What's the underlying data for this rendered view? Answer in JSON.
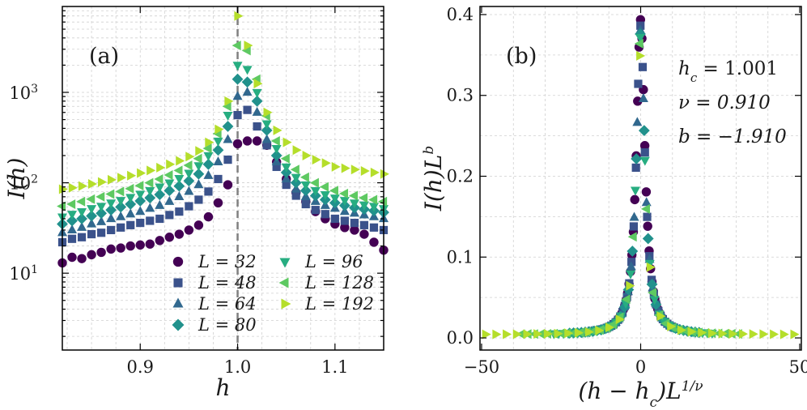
{
  "chart_data": [
    {
      "type": "scatter",
      "panel_label": "(a)",
      "xlabel": "h",
      "ylabel": "I(h)",
      "xlim": [
        0.82,
        1.15
      ],
      "ylim_log10": [
        0.15,
        3.95
      ],
      "yscale": "log",
      "xticks": [
        {
          "value": 0.9,
          "label": "0.9"
        },
        {
          "value": 1.0,
          "label": "1.0"
        },
        {
          "value": 1.1,
          "label": "1.1"
        }
      ],
      "yticks": [
        {
          "exp": 1,
          "label": "10",
          "sup": "1"
        },
        {
          "exp": 2,
          "label": "10",
          "sup": "2"
        },
        {
          "exp": 3,
          "label": "10",
          "sup": "3"
        }
      ],
      "critical_line": 1.0,
      "legend_location": "lower-center",
      "series": [
        {
          "name": "L = 32",
          "L": "32",
          "marker": "circle",
          "color": "#440154",
          "x": [
            0.82,
            0.83,
            0.84,
            0.85,
            0.86,
            0.87,
            0.88,
            0.89,
            0.9,
            0.91,
            0.92,
            0.93,
            0.94,
            0.95,
            0.96,
            0.97,
            0.98,
            0.99,
            1.0,
            1.01,
            1.02,
            1.03,
            1.04,
            1.05,
            1.06,
            1.07,
            1.08,
            1.09,
            1.1,
            1.11,
            1.12,
            1.13,
            1.14,
            1.15
          ],
          "y": [
            13,
            15,
            14.5,
            16,
            17,
            18.5,
            19,
            20,
            20.5,
            21,
            23,
            25,
            27,
            30,
            34,
            42,
            60,
            95,
            270,
            290,
            290,
            260,
            170,
            110,
            78,
            62,
            48,
            40,
            35,
            32,
            30,
            27,
            22,
            18
          ]
        },
        {
          "name": "L = 48",
          "L": "48",
          "marker": "square",
          "color": "#3b528b",
          "x": [
            0.82,
            0.83,
            0.84,
            0.85,
            0.86,
            0.87,
            0.88,
            0.89,
            0.9,
            0.91,
            0.92,
            0.93,
            0.94,
            0.95,
            0.96,
            0.97,
            0.98,
            0.99,
            1.0,
            1.01,
            1.02,
            1.03,
            1.04,
            1.05,
            1.06,
            1.07,
            1.08,
            1.09,
            1.1,
            1.11,
            1.12,
            1.13,
            1.14,
            1.15
          ],
          "y": [
            22,
            24,
            25,
            27,
            28,
            30,
            32,
            34,
            36,
            38,
            40,
            44,
            48,
            55,
            65,
            80,
            110,
            180,
            560,
            640,
            420,
            260,
            150,
            95,
            72,
            58,
            50,
            45,
            40,
            38,
            36,
            34,
            32,
            30
          ]
        },
        {
          "name": "L = 64",
          "L": "64",
          "marker": "triangle-up",
          "color": "#31688e",
          "x": [
            0.82,
            0.83,
            0.84,
            0.85,
            0.86,
            0.87,
            0.88,
            0.89,
            0.9,
            0.91,
            0.92,
            0.93,
            0.94,
            0.95,
            0.96,
            0.97,
            0.98,
            0.99,
            1.0,
            1.01,
            1.02,
            1.03,
            1.04,
            1.05,
            1.06,
            1.07,
            1.08,
            1.09,
            1.1,
            1.11,
            1.12,
            1.13,
            1.14,
            1.15
          ],
          "y": [
            28,
            30,
            32,
            35,
            37,
            40,
            42,
            45,
            48,
            52,
            56,
            62,
            70,
            80,
            95,
            120,
            170,
            300,
            900,
            1000,
            600,
            300,
            170,
            110,
            85,
            70,
            62,
            56,
            52,
            48,
            46,
            44,
            42,
            40
          ]
        },
        {
          "name": "L = 80",
          "L": "80",
          "marker": "diamond",
          "color": "#21918c",
          "x": [
            0.82,
            0.83,
            0.84,
            0.85,
            0.86,
            0.87,
            0.88,
            0.89,
            0.9,
            0.91,
            0.92,
            0.93,
            0.94,
            0.95,
            0.96,
            0.97,
            0.98,
            0.99,
            1.0,
            1.01,
            1.02,
            1.03,
            1.04,
            1.05,
            1.06,
            1.07,
            1.08,
            1.09,
            1.1,
            1.11,
            1.12,
            1.13,
            1.14,
            1.15
          ],
          "y": [
            35,
            38,
            40,
            43,
            46,
            50,
            54,
            58,
            63,
            68,
            74,
            82,
            92,
            105,
            125,
            160,
            230,
            420,
            1400,
            1300,
            800,
            380,
            200,
            130,
            100,
            82,
            72,
            65,
            60,
            56,
            53,
            51,
            49,
            47
          ]
        },
        {
          "name": "L = 96",
          "L": "96",
          "marker": "triangle-down",
          "color": "#27ad81",
          "x": [
            0.82,
            0.83,
            0.84,
            0.85,
            0.86,
            0.87,
            0.88,
            0.89,
            0.9,
            0.91,
            0.92,
            0.93,
            0.94,
            0.95,
            0.96,
            0.97,
            0.98,
            0.99,
            1.0,
            1.01,
            1.02,
            1.03,
            1.04,
            1.05,
            1.06,
            1.07,
            1.08,
            1.09,
            1.1,
            1.11,
            1.12,
            1.13,
            1.14,
            1.15
          ],
          "y": [
            42,
            45,
            48,
            52,
            55,
            60,
            64,
            69,
            75,
            82,
            90,
            100,
            112,
            128,
            155,
            200,
            290,
            560,
            2000,
            1800,
            1000,
            450,
            240,
            150,
            115,
            95,
            82,
            74,
            68,
            64,
            60,
            57,
            55,
            52
          ]
        },
        {
          "name": "L = 128",
          "L": "128",
          "marker": "triangle-left",
          "color": "#5ec962",
          "x": [
            0.82,
            0.83,
            0.84,
            0.85,
            0.86,
            0.87,
            0.88,
            0.89,
            0.9,
            0.91,
            0.92,
            0.93,
            0.94,
            0.95,
            0.96,
            0.97,
            0.98,
            0.99,
            1.0,
            1.01,
            1.02,
            1.03,
            1.04,
            1.05,
            1.06,
            1.07,
            1.08,
            1.09,
            1.1,
            1.11,
            1.12,
            1.13,
            1.14,
            1.15
          ],
          "y": [
            55,
            58,
            62,
            66,
            70,
            75,
            80,
            86,
            93,
            100,
            110,
            122,
            137,
            156,
            185,
            240,
            350,
            700,
            3300,
            2900,
            1400,
            550,
            290,
            185,
            140,
            115,
            100,
            90,
            82,
            76,
            72,
            68,
            65,
            62
          ]
        },
        {
          "name": "L = 192",
          "L": "192",
          "marker": "triangle-right",
          "color": "#b5de2b",
          "x": [
            0.82,
            0.83,
            0.84,
            0.85,
            0.86,
            0.87,
            0.88,
            0.89,
            0.9,
            0.91,
            0.92,
            0.93,
            0.94,
            0.95,
            0.96,
            0.97,
            0.98,
            0.99,
            1.0,
            1.01,
            1.02,
            1.03,
            1.04,
            1.05,
            1.06,
            1.07,
            1.08,
            1.09,
            1.1,
            1.11,
            1.12,
            1.13,
            1.14,
            1.15
          ],
          "y": [
            85,
            88,
            92,
            97,
            102,
            108,
            114,
            120,
            128,
            137,
            147,
            160,
            175,
            195,
            225,
            280,
            390,
            800,
            7000,
            3300,
            1250,
            600,
            380,
            280,
            230,
            200,
            180,
            165,
            150,
            145,
            140,
            135,
            130,
            125
          ]
        }
      ]
    },
    {
      "type": "scatter",
      "panel_label": "(b)",
      "xlabel": "(h − h_c) L^(1/ν)",
      "ylabel": "I(h) L^b",
      "xlim": [
        -50.5,
        50.5
      ],
      "ylim": [
        -0.015,
        0.41
      ],
      "xticks": [
        {
          "value": -50,
          "label": "−50"
        },
        {
          "value": 0,
          "label": "0"
        },
        {
          "value": 50,
          "label": "50"
        }
      ],
      "yticks": [
        {
          "value": 0.0,
          "label": "0.0"
        },
        {
          "value": 0.1,
          "label": "0.1"
        },
        {
          "value": 0.2,
          "label": "0.2"
        },
        {
          "value": 0.3,
          "label": "0.3"
        },
        {
          "value": 0.4,
          "label": "0.4"
        }
      ],
      "params": {
        "h_c": "1.001",
        "nu": "0.910",
        "b": "−1.910"
      }
    }
  ],
  "xaxis_b": {
    "main": "(h − h",
    "sub": "c",
    "tail": ")L",
    "sup": "1/ν"
  },
  "yaxis_b": {
    "main": "I(h)L",
    "sup": "b"
  },
  "yaxis_a": {
    "main": "I(h)"
  },
  "xaxis_a": {
    "main": "h"
  },
  "params_b": {
    "hc_label": "h",
    "hc_sub": "c",
    "hc_eq": " = 1.001",
    "nu_eq": "ν = 0.910",
    "b_eq": "b = −1.910"
  }
}
